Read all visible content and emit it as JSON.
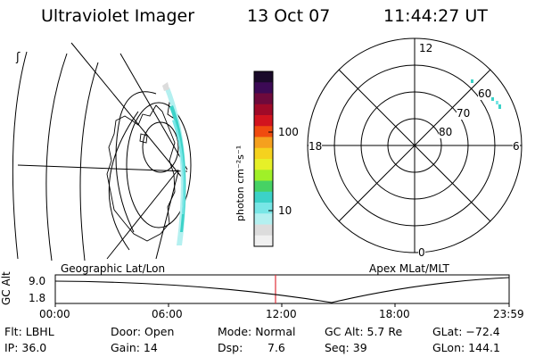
{
  "header": {
    "instrument": "Ultraviolet Imager",
    "date": "13 Oct 07",
    "time": "11:44:27 UT"
  },
  "geo_panel": {
    "label": "Geographic Lat/Lon",
    "corner_glyph": "ʃ"
  },
  "color_bar": {
    "unit_label": "photon cm⁻²s⁻¹",
    "ticks": [
      "100",
      "10"
    ],
    "colors": [
      "#1a0a2a",
      "#3c0a55",
      "#6e0a3c",
      "#a00a28",
      "#d2141e",
      "#f04b0f",
      "#f5a01e",
      "#f5d21e",
      "#e6f028",
      "#a0f028",
      "#46d264",
      "#3cd2c8",
      "#78e6e6",
      "#b4f0f0",
      "#dcdcdc",
      "#f0f0f0"
    ]
  },
  "polar_panel": {
    "label": "Apex MLat/MLT",
    "mlt_labels": {
      "top": "12",
      "left": "18",
      "right": "6",
      "bottom": "0"
    },
    "lat_labels": [
      "60",
      "70",
      "80"
    ]
  },
  "orbit_plot": {
    "ylabel": "GC Alt",
    "yticks": [
      "9.0",
      "1.8"
    ],
    "xticks": [
      "00:00",
      "06:00",
      "12:00",
      "18:00",
      "23:59"
    ],
    "current_time_color": "#e0303a"
  },
  "footer": {
    "filter": "Flt: LBHL",
    "ip": "IP: 36.0",
    "door": "Door: Open",
    "gain": "Gain: 14",
    "mode": "Mode: Normal",
    "dsp_label": "Dsp:",
    "dsp_value": "7.6",
    "gc_alt": "GC Alt: 5.7 Re",
    "seq": "Seq: 39",
    "glat": "GLat: −72.4",
    "glon": "GLon: 144.1"
  }
}
